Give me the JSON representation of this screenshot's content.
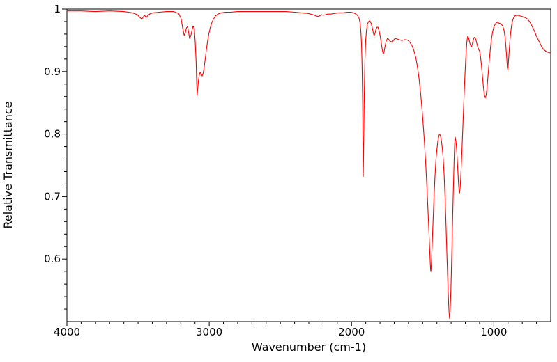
{
  "chart_data": {
    "type": "line",
    "title": "",
    "xlabel": "Wavenumber (cm-1)",
    "ylabel": "Relative Transmittance",
    "xlim": [
      4000,
      600
    ],
    "ylim": [
      0.5,
      1.0
    ],
    "x_major_ticks": [
      4000,
      3000,
      2000,
      1000
    ],
    "x_minor_tick_step": 100,
    "y_major_ticks": [
      0.6,
      0.7,
      0.8,
      0.9,
      1
    ],
    "y_tick_labels": [
      "0.6",
      "0.7",
      "0.8",
      "0.9",
      "1"
    ],
    "y_minor_tick_step": 0.02,
    "grid": false,
    "legend": "none",
    "axis_color": "#000000",
    "background_color": "#ffffff",
    "series": [
      {
        "name": "IR transmittance spectrum",
        "color": "#ff0000",
        "points": [
          [
            4000,
            0.997
          ],
          [
            3900,
            0.997
          ],
          [
            3800,
            0.996
          ],
          [
            3700,
            0.997
          ],
          [
            3600,
            0.996
          ],
          [
            3540,
            0.994
          ],
          [
            3505,
            0.991
          ],
          [
            3485,
            0.986
          ],
          [
            3472,
            0.984
          ],
          [
            3462,
            0.988
          ],
          [
            3453,
            0.99
          ],
          [
            3444,
            0.986
          ],
          [
            3434,
            0.989
          ],
          [
            3420,
            0.992
          ],
          [
            3395,
            0.994
          ],
          [
            3350,
            0.995
          ],
          [
            3300,
            0.996
          ],
          [
            3250,
            0.996
          ],
          [
            3215,
            0.993
          ],
          [
            3198,
            0.985
          ],
          [
            3186,
            0.969
          ],
          [
            3176,
            0.958
          ],
          [
            3168,
            0.962
          ],
          [
            3160,
            0.97
          ],
          [
            3152,
            0.972
          ],
          [
            3145,
            0.963
          ],
          [
            3138,
            0.953
          ],
          [
            3130,
            0.957
          ],
          [
            3121,
            0.966
          ],
          [
            3113,
            0.973
          ],
          [
            3105,
            0.968
          ],
          [
            3098,
            0.946
          ],
          [
            3092,
            0.915
          ],
          [
            3088,
            0.88
          ],
          [
            3085,
            0.862
          ],
          [
            3081,
            0.872
          ],
          [
            3076,
            0.885
          ],
          [
            3070,
            0.894
          ],
          [
            3064,
            0.899
          ],
          [
            3057,
            0.896
          ],
          [
            3050,
            0.893
          ],
          [
            3043,
            0.897
          ],
          [
            3036,
            0.906
          ],
          [
            3028,
            0.92
          ],
          [
            3020,
            0.935
          ],
          [
            3012,
            0.948
          ],
          [
            3003,
            0.96
          ],
          [
            2993,
            0.97
          ],
          [
            2982,
            0.978
          ],
          [
            2970,
            0.984
          ],
          [
            2956,
            0.989
          ],
          [
            2938,
            0.992
          ],
          [
            2915,
            0.994
          ],
          [
            2885,
            0.995
          ],
          [
            2850,
            0.995
          ],
          [
            2800,
            0.996
          ],
          [
            2730,
            0.996
          ],
          [
            2660,
            0.996
          ],
          [
            2590,
            0.996
          ],
          [
            2520,
            0.996
          ],
          [
            2460,
            0.996
          ],
          [
            2400,
            0.995
          ],
          [
            2350,
            0.994
          ],
          [
            2305,
            0.993
          ],
          [
            2270,
            0.991
          ],
          [
            2248,
            0.989
          ],
          [
            2236,
            0.988
          ],
          [
            2225,
            0.989
          ],
          [
            2212,
            0.991
          ],
          [
            2198,
            0.99
          ],
          [
            2182,
            0.991
          ],
          [
            2165,
            0.992
          ],
          [
            2145,
            0.992
          ],
          [
            2120,
            0.993
          ],
          [
            2092,
            0.994
          ],
          [
            2060,
            0.994
          ],
          [
            2030,
            0.995
          ],
          [
            2005,
            0.995
          ],
          [
            1985,
            0.994
          ],
          [
            1970,
            0.992
          ],
          [
            1958,
            0.99
          ],
          [
            1948,
            0.986
          ],
          [
            1941,
            0.979
          ],
          [
            1935,
            0.966
          ],
          [
            1930,
            0.945
          ],
          [
            1926,
            0.91
          ],
          [
            1922,
            0.85
          ],
          [
            1919,
            0.76
          ],
          [
            1918,
            0.732
          ],
          [
            1916,
            0.757
          ],
          [
            1913,
            0.815
          ],
          [
            1910,
            0.87
          ],
          [
            1906,
            0.917
          ],
          [
            1901,
            0.948
          ],
          [
            1895,
            0.966
          ],
          [
            1888,
            0.976
          ],
          [
            1880,
            0.98
          ],
          [
            1871,
            0.981
          ],
          [
            1862,
            0.977
          ],
          [
            1854,
            0.97
          ],
          [
            1847,
            0.962
          ],
          [
            1841,
            0.957
          ],
          [
            1835,
            0.961
          ],
          [
            1829,
            0.967
          ],
          [
            1822,
            0.971
          ],
          [
            1814,
            0.971
          ],
          [
            1806,
            0.965
          ],
          [
            1798,
            0.956
          ],
          [
            1790,
            0.944
          ],
          [
            1783,
            0.934
          ],
          [
            1777,
            0.928
          ],
          [
            1771,
            0.932
          ],
          [
            1764,
            0.941
          ],
          [
            1756,
            0.949
          ],
          [
            1748,
            0.953
          ],
          [
            1740,
            0.952
          ],
          [
            1731,
            0.949
          ],
          [
            1723,
            0.948
          ],
          [
            1716,
            0.947
          ],
          [
            1708,
            0.949
          ],
          [
            1699,
            0.952
          ],
          [
            1690,
            0.953
          ],
          [
            1678,
            0.952
          ],
          [
            1665,
            0.951
          ],
          [
            1652,
            0.95
          ],
          [
            1640,
            0.95
          ],
          [
            1628,
            0.951
          ],
          [
            1616,
            0.951
          ],
          [
            1604,
            0.95
          ],
          [
            1590,
            0.947
          ],
          [
            1576,
            0.942
          ],
          [
            1562,
            0.934
          ],
          [
            1549,
            0.923
          ],
          [
            1537,
            0.908
          ],
          [
            1525,
            0.888
          ],
          [
            1513,
            0.862
          ],
          [
            1501,
            0.83
          ],
          [
            1489,
            0.792
          ],
          [
            1478,
            0.75
          ],
          [
            1468,
            0.705
          ],
          [
            1459,
            0.66
          ],
          [
            1452,
            0.622
          ],
          [
            1447,
            0.595
          ],
          [
            1444,
            0.582
          ],
          [
            1442,
            0.581
          ],
          [
            1439,
            0.592
          ],
          [
            1434,
            0.618
          ],
          [
            1428,
            0.655
          ],
          [
            1421,
            0.695
          ],
          [
            1414,
            0.73
          ],
          [
            1407,
            0.758
          ],
          [
            1400,
            0.776
          ],
          [
            1393,
            0.789
          ],
          [
            1387,
            0.796
          ],
          [
            1382,
            0.8
          ],
          [
            1376,
            0.798
          ],
          [
            1370,
            0.792
          ],
          [
            1363,
            0.78
          ],
          [
            1356,
            0.762
          ],
          [
            1349,
            0.734
          ],
          [
            1342,
            0.696
          ],
          [
            1335,
            0.648
          ],
          [
            1328,
            0.596
          ],
          [
            1321,
            0.549
          ],
          [
            1315,
            0.517
          ],
          [
            1311,
            0.505
          ],
          [
            1307,
            0.516
          ],
          [
            1302,
            0.547
          ],
          [
            1296,
            0.6
          ],
          [
            1290,
            0.66
          ],
          [
            1284,
            0.715
          ],
          [
            1279,
            0.758
          ],
          [
            1275,
            0.785
          ],
          [
            1271,
            0.795
          ],
          [
            1267,
            0.79
          ],
          [
            1262,
            0.779
          ],
          [
            1257,
            0.76
          ],
          [
            1252,
            0.739
          ],
          [
            1247,
            0.718
          ],
          [
            1243,
            0.707
          ],
          [
            1240,
            0.706
          ],
          [
            1236,
            0.715
          ],
          [
            1231,
            0.736
          ],
          [
            1225,
            0.768
          ],
          [
            1218,
            0.808
          ],
          [
            1211,
            0.85
          ],
          [
            1204,
            0.888
          ],
          [
            1197,
            0.921
          ],
          [
            1191,
            0.943
          ],
          [
            1186,
            0.954
          ],
          [
            1182,
            0.957
          ],
          [
            1176,
            0.953
          ],
          [
            1169,
            0.946
          ],
          [
            1162,
            0.941
          ],
          [
            1157,
            0.94
          ],
          [
            1151,
            0.944
          ],
          [
            1145,
            0.95
          ],
          [
            1139,
            0.954
          ],
          [
            1133,
            0.955
          ],
          [
            1126,
            0.951
          ],
          [
            1119,
            0.945
          ],
          [
            1112,
            0.939
          ],
          [
            1106,
            0.935
          ],
          [
            1100,
            0.933
          ],
          [
            1094,
            0.925
          ],
          [
            1087,
            0.911
          ],
          [
            1080,
            0.893
          ],
          [
            1073,
            0.875
          ],
          [
            1066,
            0.862
          ],
          [
            1060,
            0.858
          ],
          [
            1054,
            0.862
          ],
          [
            1047,
            0.875
          ],
          [
            1040,
            0.895
          ],
          [
            1032,
            0.917
          ],
          [
            1024,
            0.937
          ],
          [
            1016,
            0.953
          ],
          [
            1008,
            0.964
          ],
          [
            1000,
            0.971
          ],
          [
            992,
            0.975
          ],
          [
            984,
            0.978
          ],
          [
            976,
            0.979
          ],
          [
            968,
            0.978
          ],
          [
            960,
            0.977
          ],
          [
            952,
            0.977
          ],
          [
            944,
            0.975
          ],
          [
            936,
            0.972
          ],
          [
            928,
            0.966
          ],
          [
            921,
            0.955
          ],
          [
            915,
            0.94
          ],
          [
            909,
            0.921
          ],
          [
            905,
            0.907
          ],
          [
            902,
            0.903
          ],
          [
            899,
            0.909
          ],
          [
            895,
            0.922
          ],
          [
            890,
            0.94
          ],
          [
            884,
            0.957
          ],
          [
            877,
            0.971
          ],
          [
            869,
            0.981
          ],
          [
            861,
            0.986
          ],
          [
            852,
            0.989
          ],
          [
            843,
            0.99
          ],
          [
            830,
            0.99
          ],
          [
            815,
            0.989
          ],
          [
            800,
            0.988
          ],
          [
            788,
            0.987
          ],
          [
            776,
            0.986
          ],
          [
            764,
            0.984
          ],
          [
            752,
            0.981
          ],
          [
            741,
            0.977
          ],
          [
            730,
            0.972
          ],
          [
            719,
            0.967
          ],
          [
            708,
            0.961
          ],
          [
            697,
            0.955
          ],
          [
            686,
            0.95
          ],
          [
            675,
            0.945
          ],
          [
            664,
            0.94
          ],
          [
            653,
            0.936
          ],
          [
            642,
            0.934
          ],
          [
            631,
            0.932
          ],
          [
            620,
            0.931
          ],
          [
            610,
            0.93
          ],
          [
            600,
            0.93
          ]
        ]
      }
    ]
  }
}
